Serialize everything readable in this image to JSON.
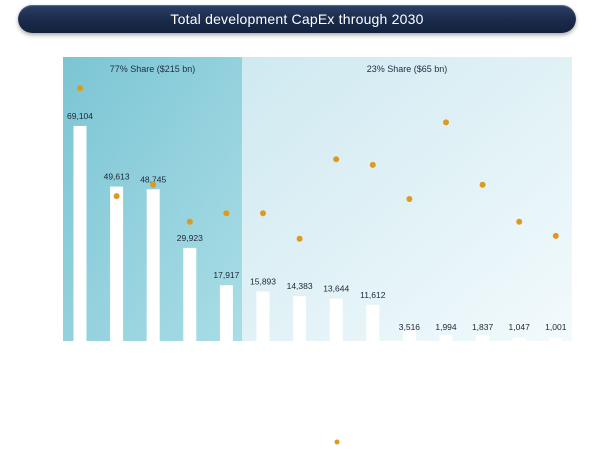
{
  "header": {
    "title": "Total development CapEx through 2030"
  },
  "chart_data": {
    "type": "bar",
    "title": "Total development CapEx through 2030",
    "categories": [
      "",
      "",
      "",
      "",
      "",
      "",
      "",
      "",
      "",
      "",
      "",
      "",
      "",
      ""
    ],
    "series": [
      {
        "values": [
          69104,
          49613,
          48745,
          29923,
          17917,
          15893,
          14383,
          13644,
          11612,
          3516,
          1994,
          1837,
          1047,
          1001
        ]
      }
    ],
    "value_labels": [
      "69,104",
      "49,613",
      "48,745",
      "29,923",
      "17,917",
      "15,893",
      "14,383",
      "13,644",
      "11,612",
      "3,516",
      "1,994",
      "1,837",
      "1,047",
      "1,001"
    ],
    "secondary_markers": [
      0.89,
      0.51,
      0.55,
      0.42,
      0.45,
      0.45,
      0.36,
      0.64,
      0.62,
      0.5,
      0.77,
      0.55,
      0.42,
      0.37
    ],
    "ylim": [
      0,
      80000
    ],
    "panels": [
      {
        "label": "77% Share ($215 bn)",
        "first": 0,
        "last": 4,
        "color": "#8fd0dd"
      },
      {
        "label": "23% Share ($65 bn)",
        "first": 5,
        "last": 13,
        "color": "#e3f3f8"
      }
    ],
    "bar_color": "#ffffff",
    "marker_color": "#dd9a1e",
    "grid": false
  }
}
